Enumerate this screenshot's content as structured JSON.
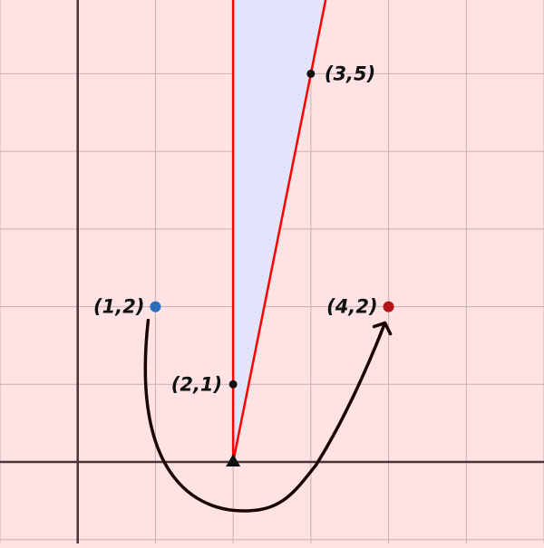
{
  "colors": {
    "background": "#ffe3e4",
    "grid": "#c9aeb0",
    "axis": "#4a3436",
    "cone_fill": "#e2e4fb",
    "cone_edge": "#ff0000",
    "point_blue": "#2a6ebd",
    "point_red": "#b11414",
    "vertex_point": "#111111",
    "arrow": "#1a0505"
  },
  "view": {
    "xmin": -1,
    "xmax": 6,
    "ymin": -1.05,
    "ymax": 5.95,
    "grid_step": 1
  },
  "cone": {
    "apex": [
      2,
      0
    ],
    "through": [
      [
        2,
        1
      ],
      [
        3,
        5
      ]
    ]
  },
  "points": [
    {
      "id": "p12",
      "x": 1,
      "y": 2,
      "label": "(1,2)",
      "color": "point_blue",
      "label_side": "left"
    },
    {
      "id": "p42",
      "x": 4,
      "y": 2,
      "label": "(4,2)",
      "color": "point_red",
      "label_side": "left"
    },
    {
      "id": "p35",
      "x": 3,
      "y": 5,
      "label": "(3,5)",
      "color": "vertex_point",
      "label_side": "right"
    },
    {
      "id": "p21",
      "x": 2,
      "y": 1,
      "label": "(2,1)",
      "color": "vertex_point",
      "label_side": "left"
    }
  ],
  "apex_marker": "triangle-up-icon",
  "arrow": {
    "from": [
      1,
      2
    ],
    "to": [
      4,
      2
    ],
    "icon": "curved-arrow-icon"
  }
}
